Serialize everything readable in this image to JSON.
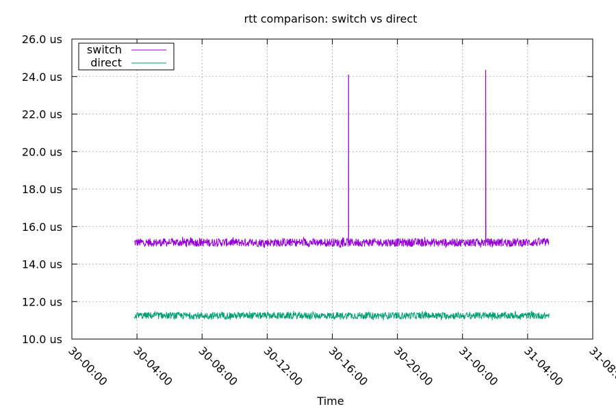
{
  "chart_data": {
    "type": "line",
    "title": "rtt comparison: switch vs direct",
    "xlabel": "Time",
    "ylabel": "",
    "x_tick_labels": [
      "30-00:00",
      "30-04:00",
      "30-08:00",
      "30-12:00",
      "30-16:00",
      "30-20:00",
      "31-00:00",
      "31-04:00",
      "31-08:00"
    ],
    "y_tick_labels": [
      "10.0 us",
      "12.0 us",
      "14.0 us",
      "16.0 us",
      "18.0 us",
      "20.0 us",
      "22.0 us",
      "24.0 us",
      "26.0 us"
    ],
    "y_ticks": [
      10,
      12,
      14,
      16,
      18,
      20,
      22,
      24,
      26
    ],
    "x_ticks_hours": [
      0,
      4,
      8,
      12,
      16,
      20,
      24,
      28,
      32
    ],
    "xlim": [
      "30-00:00",
      "31-08:00"
    ],
    "ylim": [
      10,
      26
    ],
    "grid": true,
    "legend_position": "top-left",
    "series": [
      {
        "name": "switch",
        "color": "#9400d3",
        "x_start": "30-03:50",
        "x_end": "31-05:20",
        "baseline": 15.15,
        "band": [
          14.85,
          15.45
        ],
        "spikes": [
          {
            "x": "30-17:00",
            "y": 24.1
          },
          {
            "x": "31-01:25",
            "y": 24.35
          }
        ]
      },
      {
        "name": "direct",
        "color": "#009e73",
        "x_start": "30-03:50",
        "x_end": "31-05:20",
        "baseline": 11.25,
        "band": [
          11.0,
          11.5
        ],
        "spikes": []
      }
    ]
  }
}
